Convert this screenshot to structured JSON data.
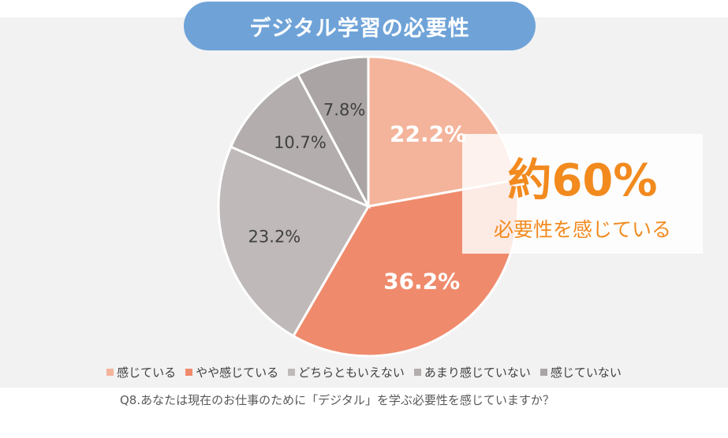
{
  "title": "デジタル学習の必要性",
  "chart_data": {
    "type": "pie",
    "categories": [
      "感じている",
      "やや感じている",
      "どちらともいえない",
      "あまり感じていない",
      "感じていない"
    ],
    "values": [
      22.2,
      36.2,
      23.2,
      10.7,
      7.8
    ],
    "labels": [
      "22.2%",
      "36.2%",
      "23.2%",
      "10.7%",
      "7.8%"
    ],
    "colors": [
      "#f4b49b",
      "#ef8b6c",
      "#bfb9b9",
      "#b3adad",
      "#aaa4a4"
    ],
    "label_colors": [
      "#ffffff",
      "#ffffff",
      "#404040",
      "#404040",
      "#404040"
    ],
    "start_angle_deg": 0,
    "direction": "clockwise",
    "legend_position": "bottom"
  },
  "callout": {
    "big": "約60%",
    "sub": "必要性を感じている"
  },
  "question": "Q8.あなたは現在のお仕事のために「デジタル」を学ぶ必要性を感じていますか？"
}
